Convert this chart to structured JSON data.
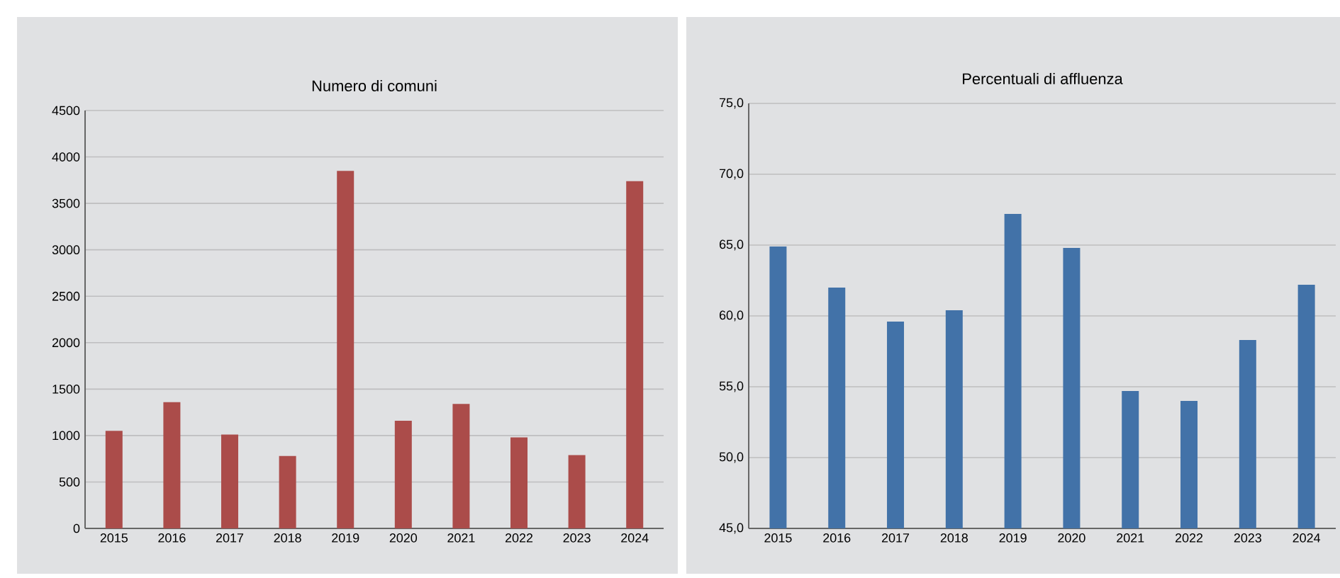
{
  "chart_data": [
    {
      "type": "bar",
      "title": "Numero di comuni",
      "categories": [
        "2015",
        "2016",
        "2017",
        "2018",
        "2019",
        "2020",
        "2021",
        "2022",
        "2023",
        "2024"
      ],
      "values": [
        1050,
        1360,
        1010,
        780,
        3850,
        1160,
        1340,
        980,
        790,
        3740
      ],
      "color": "#ab4c4a",
      "ylim": [
        0,
        4500
      ],
      "yticks": [
        0,
        500,
        1000,
        1500,
        2000,
        2500,
        3000,
        3500,
        4000,
        4500
      ],
      "grid": "y"
    },
    {
      "type": "bar",
      "title": "Percentuali di affluenza",
      "categories": [
        "2015",
        "2016",
        "2017",
        "2018",
        "2019",
        "2020",
        "2021",
        "2022",
        "2023",
        "2024"
      ],
      "values": [
        64.9,
        62.0,
        59.6,
        60.4,
        67.2,
        64.8,
        54.7,
        54.0,
        58.3,
        62.2
      ],
      "color": "#4272a8",
      "ylim": [
        45,
        75
      ],
      "yticks": [
        {
          "value": 45,
          "label": "45,0"
        },
        {
          "value": 50,
          "label": "50,0"
        },
        {
          "value": 55,
          "label": "55,0"
        },
        {
          "value": 60,
          "label": "60,0"
        },
        {
          "value": 65,
          "label": "65,0"
        },
        {
          "value": 70,
          "label": "70,0"
        },
        {
          "value": 75,
          "label": "75,0"
        }
      ],
      "grid": "y"
    }
  ]
}
